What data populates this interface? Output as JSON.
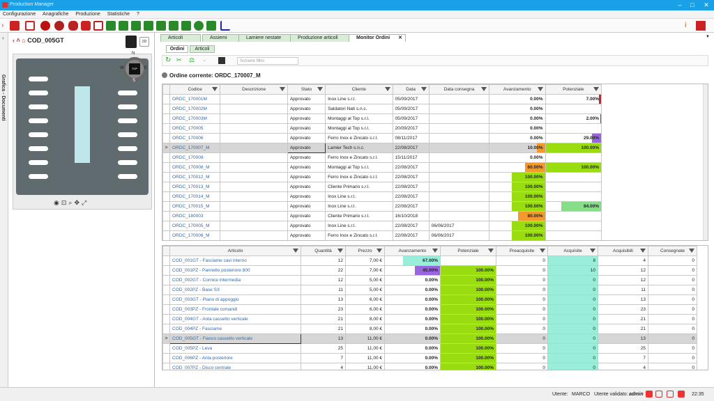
{
  "app": {
    "title": "Production Manager"
  },
  "menu": [
    "Configurazione",
    "Anagrafiche",
    "Produzione",
    "Statistiche",
    "?"
  ],
  "left": {
    "title": "COD_005GT",
    "side_label": "Grafica - Documenti",
    "mode_2d": "2D",
    "compass": {
      "n": "N",
      "s": "S",
      "e": "E",
      "w": "W",
      "top": "TOP"
    }
  },
  "tabs": [
    "Articoli",
    "Assiemi",
    "Lamiere nestate",
    "Produzione articoli",
    "Monitor Ordini"
  ],
  "subtabs": [
    "Ordini",
    "Articoli"
  ],
  "filter_placeholder": "Scrivere filtro",
  "order_title": "Ordine corrente: ORDC_170007_M",
  "orders": {
    "headers": [
      "Codice",
      "Descrizione",
      "Stato",
      "Cliente",
      "Data",
      "Data consegna",
      "Avanzamento",
      "Potenziale"
    ],
    "rows": [
      {
        "codice": "ORDC_170001M",
        "stato": "Approvato",
        "cliente": "Inox Line s.r.l.",
        "data": "05/09/2017",
        "consegna": "",
        "avanz": 0,
        "avanz_t": "0.00%",
        "pot": 7,
        "pot_t": "7.00%"
      },
      {
        "codice": "ORDC_170002M",
        "stato": "Approvato",
        "cliente": "Saldatori Nati s.n.c.",
        "data": "05/09/2017",
        "consegna": "",
        "avanz": 0,
        "avanz_t": "0.00%",
        "pot": 0,
        "pot_t": ""
      },
      {
        "codice": "ORDC_170003M",
        "stato": "Approvato",
        "cliente": "Montaggi al Top s.r.l.",
        "data": "05/09/2017",
        "consegna": "",
        "avanz": 0,
        "avanz_t": "0.00%",
        "pot": 2,
        "pot_t": "2.00%"
      },
      {
        "codice": "ORDC_170005",
        "stato": "Approvato",
        "cliente": "Montaggi al Top s.r.l.",
        "data": "20/09/2017",
        "consegna": "",
        "avanz": 0,
        "avanz_t": "0.00%",
        "pot": 0,
        "pot_t": ""
      },
      {
        "codice": "ORDC_170006",
        "stato": "Approvato",
        "cliente": "Ferro Inox e Zincato s.r.l.",
        "data": "08/11/2017",
        "consegna": "",
        "avanz": 0,
        "avanz_t": "0.00%",
        "pot": 29,
        "pot_t": "29.00%"
      },
      {
        "codice": "ORDC_170007_M",
        "stato": "Approvato",
        "cliente": "Lamier Tech s.n.c.",
        "data": "22/08/2017",
        "consegna": "",
        "avanz": 10,
        "avanz_t": "10.00%",
        "pot": 100,
        "pot_t": "100.00%",
        "sel": true
      },
      {
        "codice": "ORDC_170008",
        "stato": "Approvato",
        "cliente": "Ferro Inox e Zincato s.r.l.",
        "data": "15/11/2017",
        "consegna": "",
        "avanz": 0,
        "avanz_t": "0.00%",
        "pot": 0,
        "pot_t": ""
      },
      {
        "codice": "ORDC_170008_M",
        "stato": "Approvato",
        "cliente": "Montaggi al Top s.r.l.",
        "data": "22/08/2017",
        "consegna": "",
        "avanz": 60,
        "avanz_t": "60.00%",
        "pot": 100,
        "pot_t": "100.00%"
      },
      {
        "codice": "ORDC_170012_M",
        "stato": "Approvato",
        "cliente": "Ferro Inox e Zincato s.r.l.",
        "data": "22/08/2017",
        "consegna": "",
        "avanz": 100,
        "avanz_t": "100.00%",
        "pot": 0,
        "pot_t": ""
      },
      {
        "codice": "ORDC_170013_M",
        "stato": "Approvato",
        "cliente": "Cliente Primario s.r.l.",
        "data": "22/08/2017",
        "consegna": "",
        "avanz": 100,
        "avanz_t": "100.00%",
        "pot": 0,
        "pot_t": ""
      },
      {
        "codice": "ORDC_170014_M",
        "stato": "Approvato",
        "cliente": "Inox Line s.r.l.",
        "data": "22/08/2017",
        "consegna": "",
        "avanz": 100,
        "avanz_t": "100.00%",
        "pot": 0,
        "pot_t": ""
      },
      {
        "codice": "ORDC_170015_M",
        "stato": "Approvato",
        "cliente": "Inox Line s.r.l.",
        "data": "22/08/2017",
        "consegna": "",
        "avanz": 100,
        "avanz_t": "100.00%",
        "pot": 84,
        "pot_t": "84.00%"
      },
      {
        "codice": "ORDC_180003",
        "stato": "Approvato",
        "cliente": "Cliente Primario s.r.l.",
        "data": "16/10/2018",
        "consegna": "",
        "avanz": 80,
        "avanz_t": "80.00%",
        "pot": 0,
        "pot_t": ""
      },
      {
        "codice": "ORDC_170005_M",
        "stato": "Approvato",
        "cliente": "Inox Line s.r.l.",
        "data": "22/08/2017",
        "consegna": "06/06/2017",
        "avanz": 100,
        "avanz_t": "100.00%",
        "pot": 0,
        "pot_t": ""
      },
      {
        "codice": "ORDC_170006_M",
        "stato": "Approvato",
        "cliente": "Ferro Inox e Zincato s.r.l.",
        "data": "22/08/2017",
        "consegna": "06/06/2017",
        "avanz": 100,
        "avanz_t": "100.00%",
        "pot": 0,
        "pot_t": ""
      }
    ]
  },
  "articles": {
    "headers": [
      "Articolo",
      "Quantità",
      "Prezzo",
      "Avanzamento",
      "Potenziale",
      "Preacquisite",
      "Acquisite",
      "Acquisibili",
      "Consegnate"
    ],
    "rows": [
      {
        "art": "COD_001GT - Fasciame cavi interno",
        "q": "12",
        "p": "7,00 €",
        "avanz": 67,
        "avanz_t": "67.00%",
        "pot": 0,
        "pot_t": "",
        "pre": "0",
        "acq": "8",
        "acqb": "4",
        "cons": "0"
      },
      {
        "art": "COD_001PZ - Pannello posteriore 800",
        "q": "22",
        "p": "7,00 €",
        "avanz": 45,
        "avanz_t": "45.00%",
        "pot": 100,
        "pot_t": "100.00%",
        "pre": "0",
        "acq": "10",
        "acqb": "12",
        "cons": "0"
      },
      {
        "art": "COD_002GT - Cornice intermedia",
        "q": "12",
        "p": "5,00 €",
        "avanz": 0,
        "avanz_t": "0.00%",
        "pot": 100,
        "pot_t": "100.00%",
        "pre": "0",
        "acq": "0",
        "acqb": "12",
        "cons": "0"
      },
      {
        "art": "COD_002PZ - Base SX",
        "q": "11",
        "p": "5,00 €",
        "avanz": 0,
        "avanz_t": "0.00%",
        "pot": 100,
        "pot_t": "100.00%",
        "pre": "0",
        "acq": "0",
        "acqb": "11",
        "cons": "0"
      },
      {
        "art": "COD_003GT - Piano di appoggio",
        "q": "13",
        "p": "6,00 €",
        "avanz": 0,
        "avanz_t": "0.00%",
        "pot": 100,
        "pot_t": "100.00%",
        "pre": "0",
        "acq": "0",
        "acqb": "13",
        "cons": "0"
      },
      {
        "art": "COD_003PZ - Frontale comandi",
        "q": "23",
        "p": "6,00 €",
        "avanz": 0,
        "avanz_t": "0.00%",
        "pot": 100,
        "pot_t": "100.00%",
        "pre": "0",
        "acq": "0",
        "acqb": "23",
        "cons": "0"
      },
      {
        "art": "COD_004GT - Anta cassetto verticale",
        "q": "21",
        "p": "8,00 €",
        "avanz": 0,
        "avanz_t": "0.00%",
        "pot": 100,
        "pot_t": "100.00%",
        "pre": "0",
        "acq": "0",
        "acqb": "21",
        "cons": "0"
      },
      {
        "art": "COD_004PZ - Fasciame",
        "q": "21",
        "p": "8,00 €",
        "avanz": 0,
        "avanz_t": "0.00%",
        "pot": 100,
        "pot_t": "100.00%",
        "pre": "0",
        "acq": "0",
        "acqb": "21",
        "cons": "0"
      },
      {
        "art": "COD_005GT - Fianco cassetto verticale",
        "q": "13",
        "p": "11,00 €",
        "avanz": 0,
        "avanz_t": "0.00%",
        "pot": 100,
        "pot_t": "100.00%",
        "pre": "0",
        "acq": "0",
        "acqb": "13",
        "cons": "0",
        "sel": true
      },
      {
        "art": "COD_005PZ - Leva",
        "q": "25",
        "p": "11,00 €",
        "avanz": 0,
        "avanz_t": "0.00%",
        "pot": 100,
        "pot_t": "100.00%",
        "pre": "0",
        "acq": "0",
        "acqb": "25",
        "cons": "0"
      },
      {
        "art": "COD_006PZ - Anta posteriore",
        "q": "7",
        "p": "11,00 €",
        "avanz": 0,
        "avanz_t": "0.00%",
        "pot": 100,
        "pot_t": "100.00%",
        "pre": "0",
        "acq": "0",
        "acqb": "7",
        "cons": "0"
      },
      {
        "art": "COD_007PZ - Disco centrale",
        "q": "4",
        "p": "11,00 €",
        "avanz": 0,
        "avanz_t": "0.00%",
        "pot": 100,
        "pot_t": "100.00%",
        "pre": "0",
        "acq": "0",
        "acqb": "4",
        "cons": "0"
      }
    ]
  },
  "status": {
    "utente_label": "Utente:",
    "utente": "MARCO",
    "validato_label": "Utente validato:",
    "validato": "admin",
    "time": "22:35"
  },
  "colors": {
    "green": "#99dd11",
    "teal": "#99eed9",
    "orange": "#f29a2e",
    "purple": "#9966dd",
    "red": "#cc2222",
    "lightgreen": "#88dd88"
  }
}
